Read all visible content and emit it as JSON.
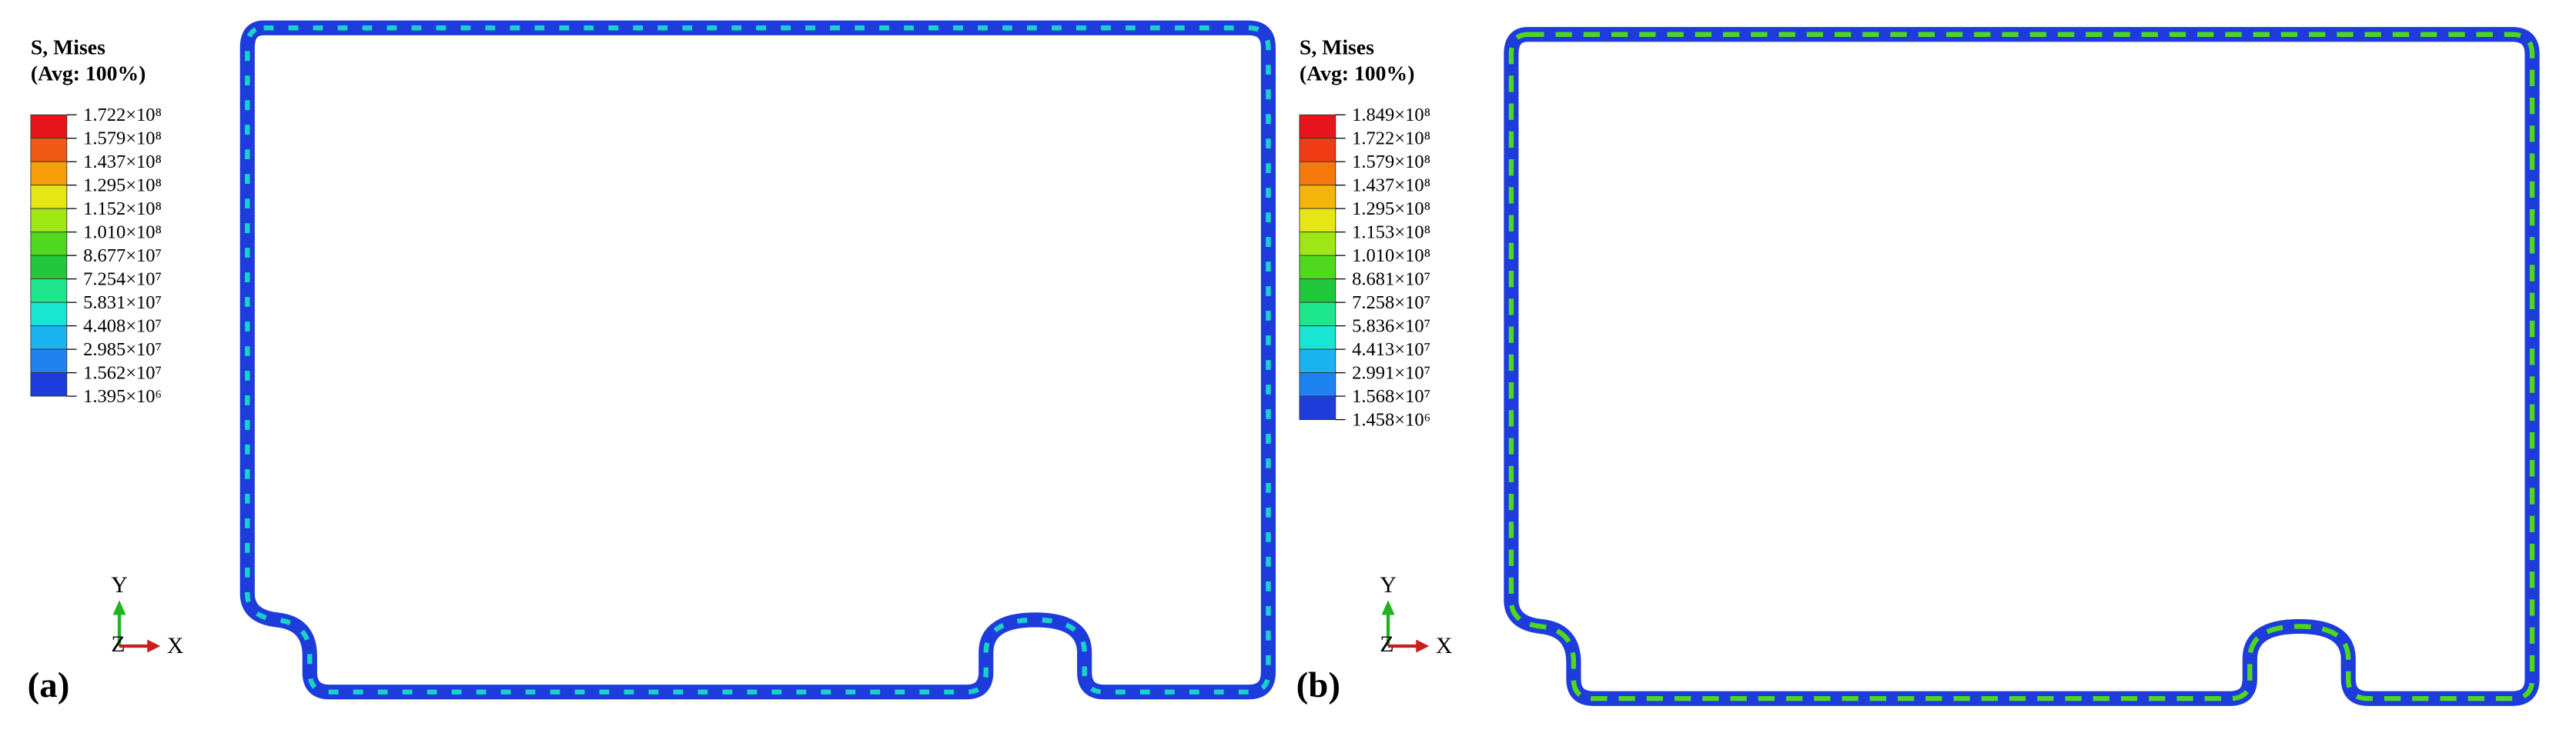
{
  "panels": [
    {
      "label": "(a)",
      "legend": {
        "title": "S, Mises",
        "subtitle": "(Avg: 100%)",
        "levels": [
          "1.722×10⁸",
          "1.579×10⁸",
          "1.437×10⁸",
          "1.295×10⁸",
          "1.152×10⁸",
          "1.010×10⁸",
          "8.677×10⁷",
          "7.254×10⁷",
          "5.831×10⁷",
          "4.408×10⁷",
          "2.985×10⁷",
          "1.562×10⁷",
          "1.395×10⁶"
        ],
        "band_colors": [
          "#e8141c",
          "#f05a14",
          "#f5a00a",
          "#e6e614",
          "#9ee614",
          "#4fd81e",
          "#21c83c",
          "#1ee68c",
          "#19e6d2",
          "#19b4f0",
          "#1e82f0",
          "#1e3cdc"
        ]
      },
      "axes": {
        "y": "Y",
        "z": "Z",
        "x": "X"
      }
    },
    {
      "label": "(b)",
      "legend": {
        "title": "S, Mises",
        "subtitle": "(Avg: 100%)",
        "levels": [
          "1.849×10⁸",
          "1.722×10⁸",
          "1.579×10⁸",
          "1.437×10⁸",
          "1.295×10⁸",
          "1.153×10⁸",
          "1.010×10⁸",
          "8.681×10⁷",
          "7.258×10⁷",
          "5.836×10⁷",
          "4.413×10⁷",
          "2.991×10⁷",
          "1.568×10⁷",
          "1.458×10⁶"
        ],
        "band_colors": [
          "#e8141c",
          "#f03c14",
          "#f5780a",
          "#f5b40a",
          "#e6e614",
          "#9ee614",
          "#4fd81e",
          "#21c83c",
          "#1ee68c",
          "#19e6d2",
          "#19b4f0",
          "#1e82f0",
          "#1e3cdc"
        ]
      },
      "axes": {
        "y": "Y",
        "z": "Z",
        "x": "X"
      }
    }
  ]
}
